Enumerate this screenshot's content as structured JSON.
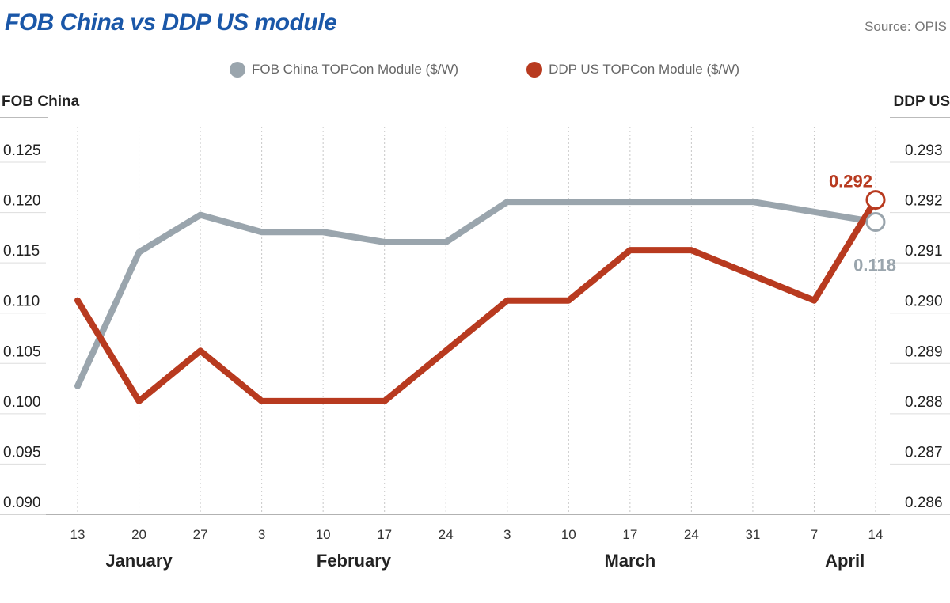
{
  "header": {
    "title": "FOB China vs DDP US module",
    "source": "Source: OPIS"
  },
  "chart_data": {
    "type": "line",
    "title": "FOB China vs DDP US module",
    "x": [
      "13",
      "20",
      "27",
      "3",
      "10",
      "17",
      "24",
      "3",
      "10",
      "17",
      "24",
      "31",
      "7",
      "14"
    ],
    "months": [
      {
        "label": "January",
        "start": 0,
        "end": 2
      },
      {
        "label": "February",
        "start": 3,
        "end": 6
      },
      {
        "label": "March",
        "start": 7,
        "end": 11
      },
      {
        "label": "April",
        "start": 12,
        "end": 13
      }
    ],
    "y_left": {
      "label": "FOB China",
      "ticks": [
        "0.090",
        "0.095",
        "0.100",
        "0.105",
        "0.110",
        "0.115",
        "0.120",
        "0.125"
      ],
      "range": [
        0.09,
        0.125
      ]
    },
    "y_right": {
      "label": "DDP US",
      "ticks": [
        "0.286",
        "0.287",
        "0.288",
        "0.289",
        "0.290",
        "0.291",
        "0.292",
        "0.293"
      ],
      "range": [
        0.286,
        0.293
      ]
    },
    "series": [
      {
        "name": "FOB China TOPCon Module ($/W)",
        "axis": "left",
        "color": "#9aa5ad",
        "values": [
          0.1015,
          0.1148,
          0.1185,
          0.1168,
          0.1168,
          0.1158,
          0.1158,
          0.1198,
          0.1198,
          0.1198,
          0.1198,
          0.1198,
          0.1188,
          0.1178
        ],
        "end_label": "0.118"
      },
      {
        "name": "DDP US TOPCon Module ($/W)",
        "axis": "right",
        "color": "#b83a1f",
        "values": [
          0.29,
          0.288,
          0.289,
          0.288,
          0.288,
          0.288,
          0.289,
          0.29,
          0.29,
          0.291,
          0.291,
          0.2905,
          0.29,
          0.292
        ],
        "end_label": "0.292"
      }
    ],
    "grid": {
      "vertical": "dotted",
      "horizontal": false
    },
    "legend_position": "top-center"
  }
}
